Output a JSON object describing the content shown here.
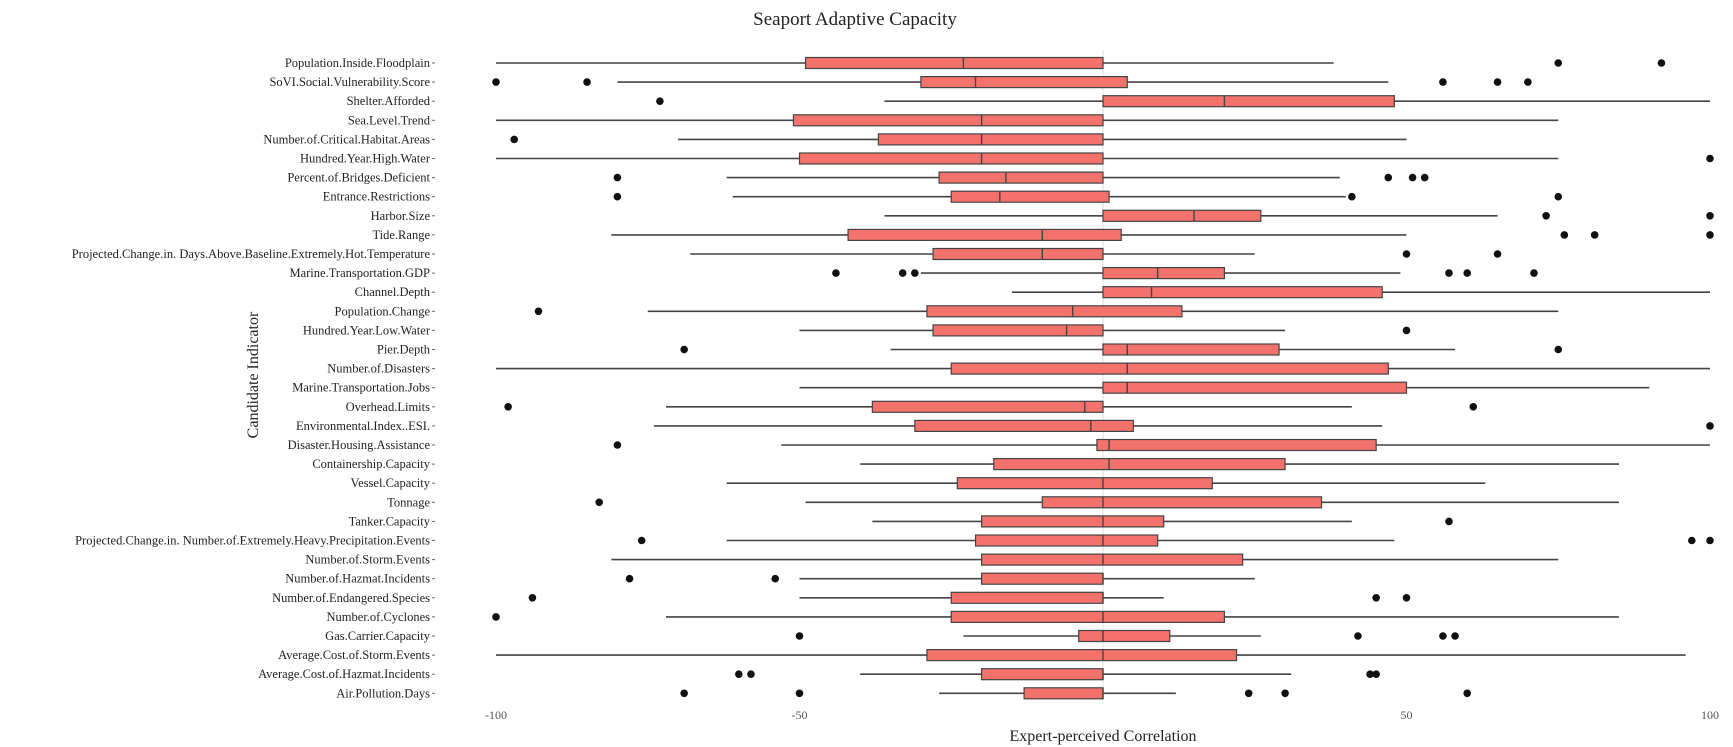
{
  "chart_data": {
    "type": "boxplot",
    "title": "Seaport Adaptive Capacity",
    "xlabel": "Expert-perceived Correlation",
    "ylabel": "Candidate Indicator",
    "xlim": [
      -100,
      100
    ],
    "xticks": [
      -100,
      -50,
      50,
      100
    ],
    "grid": false,
    "box_color": "#f4726c",
    "box_stroke": "#444444",
    "categories": [
      {
        "name": "Population.Inside.Floodplain",
        "min": -100,
        "q1": -49,
        "median": -23,
        "q3": 0,
        "max": 38,
        "outliers": [
          75,
          92
        ]
      },
      {
        "name": "SoVI.Social.Vulnerability.Score",
        "min": -80,
        "q1": -30,
        "median": -21,
        "q3": 4,
        "max": 47,
        "outliers": [
          -100,
          -85,
          56,
          65,
          70
        ]
      },
      {
        "name": "Shelter.Afforded",
        "min": -36,
        "q1": 0,
        "median": 20,
        "q3": 48,
        "max": 100,
        "outliers": [
          -73
        ]
      },
      {
        "name": "Sea.Level.Trend",
        "min": -100,
        "q1": -51,
        "median": -20,
        "q3": 0,
        "max": 75,
        "outliers": []
      },
      {
        "name": "Number.of.Critical.Habitat.Areas",
        "min": -70,
        "q1": -37,
        "median": -20,
        "q3": 0,
        "max": 50,
        "outliers": [
          -97
        ]
      },
      {
        "name": "Hundred.Year.High.Water",
        "min": -100,
        "q1": -50,
        "median": -20,
        "q3": 0,
        "max": 75,
        "outliers": [
          100
        ]
      },
      {
        "name": "Percent.of.Bridges.Deficient",
        "min": -62,
        "q1": -27,
        "median": -16,
        "q3": 0,
        "max": 39,
        "outliers": [
          -80,
          47,
          51,
          53
        ]
      },
      {
        "name": "Entrance.Restrictions",
        "min": -61,
        "q1": -25,
        "median": -17,
        "q3": 1,
        "max": 40,
        "outliers": [
          -80,
          41,
          75
        ]
      },
      {
        "name": "Harbor.Size",
        "min": -36,
        "q1": 0,
        "median": 15,
        "q3": 26,
        "max": 65,
        "outliers": [
          73,
          100
        ]
      },
      {
        "name": "Tide.Range",
        "min": -81,
        "q1": -42,
        "median": -10,
        "q3": 3,
        "max": 50,
        "outliers": [
          76,
          81,
          100
        ]
      },
      {
        "name": "Projected.Change.in. Days.Above.Baseline.Extremely.Hot.Temperature",
        "min": -68,
        "q1": -28,
        "median": -10,
        "q3": 0,
        "max": 25,
        "outliers": [
          50,
          65
        ]
      },
      {
        "name": "Marine.Transportation.GDP",
        "min": -30,
        "q1": 0,
        "median": 9,
        "q3": 20,
        "max": 49,
        "outliers": [
          -44,
          -33,
          -31,
          57,
          60,
          71
        ]
      },
      {
        "name": "Channel.Depth",
        "min": -15,
        "q1": 0,
        "median": 8,
        "q3": 46,
        "max": 100,
        "outliers": []
      },
      {
        "name": "Population.Change",
        "min": -75,
        "q1": -29,
        "median": -5,
        "q3": 13,
        "max": 75,
        "outliers": [
          -93
        ]
      },
      {
        "name": "Hundred.Year.Low.Water",
        "min": -50,
        "q1": -28,
        "median": -6,
        "q3": 0,
        "max": 30,
        "outliers": [
          50
        ]
      },
      {
        "name": "Pier.Depth",
        "min": -35,
        "q1": 0,
        "median": 4,
        "q3": 29,
        "max": 58,
        "outliers": [
          -69,
          75
        ]
      },
      {
        "name": "Number.of.Disasters",
        "min": -100,
        "q1": -25,
        "median": 4,
        "q3": 47,
        "max": 100,
        "outliers": []
      },
      {
        "name": "Marine.Transportation.Jobs",
        "min": -50,
        "q1": 0,
        "median": 4,
        "q3": 50,
        "max": 90,
        "outliers": []
      },
      {
        "name": "Overhead.Limits",
        "min": -72,
        "q1": -38,
        "median": -3,
        "q3": 0,
        "max": 41,
        "outliers": [
          -98,
          61
        ]
      },
      {
        "name": "Environmental.Index..ESI.",
        "min": -74,
        "q1": -31,
        "median": -2,
        "q3": 5,
        "max": 46,
        "outliers": [
          100
        ]
      },
      {
        "name": "Disaster.Housing.Assistance",
        "min": -53,
        "q1": -1,
        "median": 1,
        "q3": 45,
        "max": 100,
        "outliers": [
          -80
        ]
      },
      {
        "name": "Containership.Capacity",
        "min": -40,
        "q1": -18,
        "median": 1,
        "q3": 30,
        "max": 85,
        "outliers": []
      },
      {
        "name": "Vessel.Capacity",
        "min": -62,
        "q1": -24,
        "median": 0,
        "q3": 18,
        "max": 63,
        "outliers": []
      },
      {
        "name": "Tonnage",
        "min": -49,
        "q1": -10,
        "median": 0,
        "q3": 36,
        "max": 85,
        "outliers": [
          -83
        ]
      },
      {
        "name": "Tanker.Capacity",
        "min": -38,
        "q1": -20,
        "median": 0,
        "q3": 10,
        "max": 41,
        "outliers": [
          57
        ]
      },
      {
        "name": "Projected.Change.in. Number.of.Extremely.Heavy.Precipitation.Events",
        "min": -62,
        "q1": -21,
        "median": 0,
        "q3": 9,
        "max": 48,
        "outliers": [
          -76,
          97,
          100
        ]
      },
      {
        "name": "Number.of.Storm.Events",
        "min": -81,
        "q1": -20,
        "median": 0,
        "q3": 23,
        "max": 75,
        "outliers": []
      },
      {
        "name": "Number.of.Hazmat.Incidents",
        "min": -50,
        "q1": -20,
        "median": 0,
        "q3": 0,
        "max": 25,
        "outliers": [
          -78,
          -54
        ]
      },
      {
        "name": "Number.of.Endangered.Species",
        "min": -50,
        "q1": -25,
        "median": 0,
        "q3": 0,
        "max": 10,
        "outliers": [
          -94,
          45,
          50
        ]
      },
      {
        "name": "Number.of.Cyclones",
        "min": -72,
        "q1": -25,
        "median": 0,
        "q3": 20,
        "max": 85,
        "outliers": [
          -100
        ]
      },
      {
        "name": "Gas.Carrier.Capacity",
        "min": -23,
        "q1": -4,
        "median": 0,
        "q3": 11,
        "max": 26,
        "outliers": [
          -50,
          42,
          56,
          58
        ]
      },
      {
        "name": "Average.Cost.of.Storm.Events",
        "min": -100,
        "q1": -29,
        "median": 0,
        "q3": 22,
        "max": 96,
        "outliers": []
      },
      {
        "name": "Average.Cost.of.Hazmat.Incidents",
        "min": -40,
        "q1": -20,
        "median": 0,
        "q3": 0,
        "max": 31,
        "outliers": [
          -60,
          -58,
          44,
          45
        ]
      },
      {
        "name": "Air.Pollution.Days",
        "min": -27,
        "q1": -13,
        "median": 0,
        "q3": 0,
        "max": 12,
        "outliers": [
          -69,
          -50,
          24,
          30,
          60
        ]
      }
    ]
  }
}
